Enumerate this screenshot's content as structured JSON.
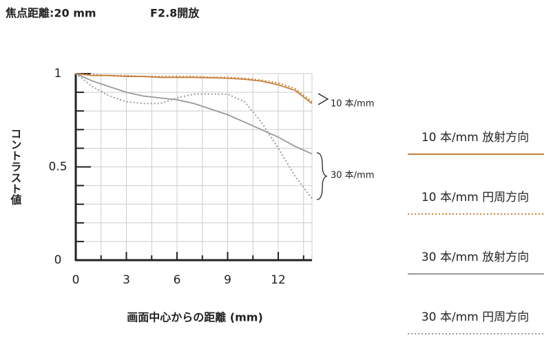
{
  "chart_data": {
    "type": "line",
    "title": "焦点距離:20 mm",
    "subtitle": "F2.8開放",
    "x_label": "画面中心からの距離 (mm)",
    "y_label": "コントラスト値",
    "x": [
      0,
      1,
      2,
      3,
      4,
      5,
      6,
      7,
      8,
      9,
      10,
      11,
      12,
      13,
      14
    ],
    "series": [
      {
        "name": "10 本/mm 放射方向",
        "color": "#c8803a",
        "dash": false,
        "values": [
          1.0,
          0.99,
          0.99,
          0.985,
          0.985,
          0.98,
          0.98,
          0.98,
          0.978,
          0.975,
          0.97,
          0.96,
          0.94,
          0.91,
          0.84
        ]
      },
      {
        "name": "10 本/mm 円周方向",
        "color": "#c8803a",
        "dash": true,
        "values": [
          1.0,
          0.995,
          0.99,
          0.99,
          0.985,
          0.985,
          0.985,
          0.985,
          0.98,
          0.98,
          0.975,
          0.965,
          0.95,
          0.92,
          0.85
        ]
      },
      {
        "name": "30 本/mm 放射方向",
        "color": "#999999",
        "dash": false,
        "values": [
          1.0,
          0.96,
          0.93,
          0.9,
          0.88,
          0.87,
          0.86,
          0.84,
          0.81,
          0.78,
          0.74,
          0.7,
          0.66,
          0.61,
          0.57
        ]
      },
      {
        "name": "30 本/mm 円周方向",
        "color": "#999999",
        "dash": true,
        "values": [
          1.0,
          0.93,
          0.88,
          0.85,
          0.84,
          0.84,
          0.87,
          0.89,
          0.89,
          0.89,
          0.85,
          0.74,
          0.6,
          0.45,
          0.33
        ]
      }
    ],
    "annotations": [
      "10 本/mm",
      "30 本/mm"
    ],
    "xlim": [
      0,
      14
    ],
    "ylim": [
      0,
      1
    ],
    "xticks": [
      0,
      3,
      6,
      9,
      12
    ],
    "yticks": [
      0,
      0.5,
      1
    ],
    "xgrid": [
      1.5,
      3,
      4.5,
      6,
      7.5,
      9,
      10.5,
      12,
      13.5
    ],
    "ygrid": [
      0.1,
      0.2,
      0.3,
      0.4,
      0.5,
      0.6,
      0.7,
      0.8,
      0.9
    ],
    "grid": true
  }
}
